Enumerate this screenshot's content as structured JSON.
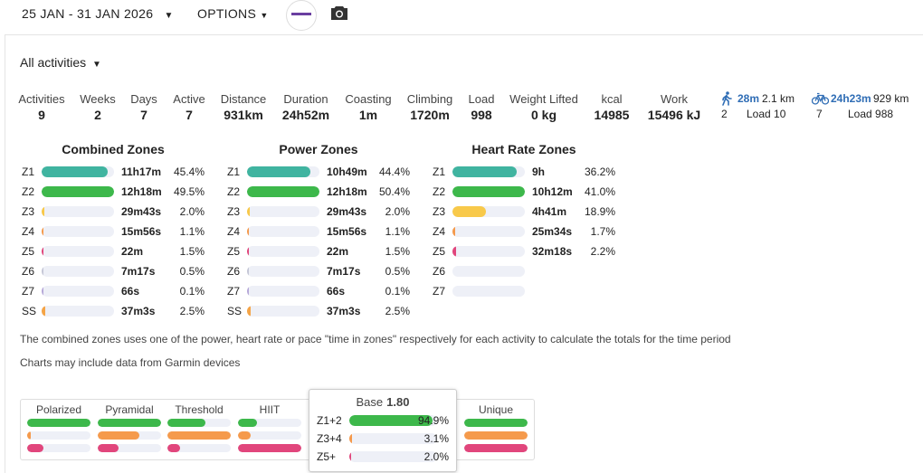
{
  "header": {
    "date_range": "25 JAN - 31 JAN 2026",
    "options": "OPTIONS"
  },
  "filter": "All activities",
  "stats": [
    {
      "label": "Activities",
      "value": "9"
    },
    {
      "label": "Weeks",
      "value": "2"
    },
    {
      "label": "Days",
      "value": "7"
    },
    {
      "label": "Active",
      "value": "7"
    },
    {
      "label": "Distance",
      "value": "931km"
    },
    {
      "label": "Duration",
      "value": "24h52m"
    },
    {
      "label": "Coasting",
      "value": "1m"
    },
    {
      "label": "Climbing",
      "value": "1720m"
    },
    {
      "label": "Load",
      "value": "998"
    },
    {
      "label": "Weight Lifted",
      "value": "0 kg"
    },
    {
      "label": "kcal",
      "value": "14985"
    },
    {
      "label": "Work",
      "value": "15496 kJ"
    }
  ],
  "sports": [
    {
      "time": "28m",
      "distance": "2.1 km",
      "count": "2",
      "load": "Load 10"
    },
    {
      "time": "24h23m",
      "distance": "929 km",
      "count": "7",
      "load": "Load 988"
    }
  ],
  "zones": [
    {
      "title": "Combined Zones",
      "rows": [
        {
          "zone": "Z1",
          "time": "11h17m",
          "pct": {
            "value": 45.4,
            "label": "45.4%"
          },
          "color": "#40b4a0"
        },
        {
          "zone": "Z2",
          "time": "12h18m",
          "pct": {
            "value": 49.5,
            "label": "49.5%"
          },
          "color": "#3db84b"
        },
        {
          "zone": "Z3",
          "time": "29m43s",
          "pct": {
            "value": 2.0,
            "label": "2.0%"
          },
          "color": "#f8c94a"
        },
        {
          "zone": "Z4",
          "time": "15m56s",
          "pct": {
            "value": 1.1,
            "label": "1.1%"
          },
          "color": "#f59a4c"
        },
        {
          "zone": "Z5",
          "time": "22m",
          "pct": {
            "value": 1.5,
            "label": "1.5%"
          },
          "color": "#e1467c"
        },
        {
          "zone": "Z6",
          "time": "7m17s",
          "pct": {
            "value": 0.5,
            "label": "0.5%"
          },
          "color": "#c5c7d6"
        },
        {
          "zone": "Z7",
          "time": "66s",
          "pct": {
            "value": 0.1,
            "label": "0.1%"
          },
          "color": "#b6a8d8"
        },
        {
          "zone": "SS",
          "time": "37m3s",
          "pct": {
            "value": 2.5,
            "label": "2.5%"
          },
          "color": "#f5a446"
        }
      ]
    },
    {
      "title": "Power Zones",
      "rows": [
        {
          "zone": "Z1",
          "time": "10h49m",
          "pct": {
            "value": 44.4,
            "label": "44.4%"
          },
          "color": "#40b4a0"
        },
        {
          "zone": "Z2",
          "time": "12h18m",
          "pct": {
            "value": 50.4,
            "label": "50.4%"
          },
          "color": "#3db84b"
        },
        {
          "zone": "Z3",
          "time": "29m43s",
          "pct": {
            "value": 2.0,
            "label": "2.0%"
          },
          "color": "#f8c94a"
        },
        {
          "zone": "Z4",
          "time": "15m56s",
          "pct": {
            "value": 1.1,
            "label": "1.1%"
          },
          "color": "#f59a4c"
        },
        {
          "zone": "Z5",
          "time": "22m",
          "pct": {
            "value": 1.5,
            "label": "1.5%"
          },
          "color": "#e1467c"
        },
        {
          "zone": "Z6",
          "time": "7m17s",
          "pct": {
            "value": 0.5,
            "label": "0.5%"
          },
          "color": "#c5c7d6"
        },
        {
          "zone": "Z7",
          "time": "66s",
          "pct": {
            "value": 0.1,
            "label": "0.1%"
          },
          "color": "#b6a8d8"
        },
        {
          "zone": "SS",
          "time": "37m3s",
          "pct": {
            "value": 2.5,
            "label": "2.5%"
          },
          "color": "#f5a446"
        }
      ]
    },
    {
      "title": "Heart Rate Zones",
      "rows": [
        {
          "zone": "Z1",
          "time": "9h",
          "pct": {
            "value": 36.2,
            "label": "36.2%"
          },
          "color": "#40b4a0"
        },
        {
          "zone": "Z2",
          "time": "10h12m",
          "pct": {
            "value": 41.0,
            "label": "41.0%"
          },
          "color": "#3db84b"
        },
        {
          "zone": "Z3",
          "time": "4h41m",
          "pct": {
            "value": 18.9,
            "label": "18.9%"
          },
          "color": "#f8c94a"
        },
        {
          "zone": "Z4",
          "time": "25m34s",
          "pct": {
            "value": 1.7,
            "label": "1.7%"
          },
          "color": "#f59a4c"
        },
        {
          "zone": "Z5",
          "time": "32m18s",
          "pct": {
            "value": 2.2,
            "label": "2.2%"
          },
          "color": "#e1467c"
        },
        {
          "zone": "Z6"
        },
        {
          "zone": "Z7"
        }
      ]
    }
  ],
  "notes": [
    "The combined zones uses one of the power, heart rate or pace \"time in zones\" respectively for each activity to calculate the totals for the time period",
    "Charts may include data from Garmin devices"
  ],
  "models": {
    "colors": [
      "#3db84b",
      "#f59a4c",
      "#e1467c"
    ],
    "columns": [
      {
        "name": "Polarized",
        "values": [
          100,
          5,
          25
        ]
      },
      {
        "name": "Pyramidal",
        "values": [
          100,
          65,
          33
        ]
      },
      {
        "name": "Threshold",
        "values": [
          60,
          100,
          20
        ]
      },
      {
        "name": "HIIT",
        "values": [
          30,
          20,
          100
        ]
      },
      {
        "name": "Unique",
        "values": [
          100,
          100,
          100
        ]
      }
    ]
  },
  "tooltip": {
    "title": "Base",
    "score": "1.80",
    "rows": [
      {
        "zone": "Z1+2",
        "pct": {
          "value": 94.9,
          "label": "94.9%"
        },
        "color": "#3db84b"
      },
      {
        "zone": "Z3+4",
        "pct": {
          "value": 3.1,
          "label": "3.1%"
        },
        "color": "#f59a4c"
      },
      {
        "zone": "Z5+",
        "pct": {
          "value": 2.0,
          "label": "2.0%"
        },
        "color": "#e1467c"
      }
    ]
  }
}
